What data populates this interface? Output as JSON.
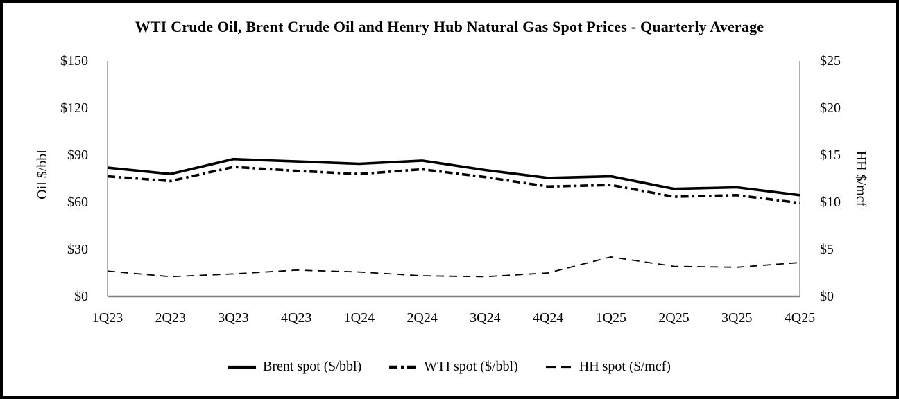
{
  "chart_data": {
    "type": "line",
    "title": "WTI Crude Oil, Brent Crude Oil and Henry Hub Natural Gas Spot Prices - Quarterly Average",
    "categories": [
      "1Q23",
      "2Q23",
      "3Q23",
      "4Q23",
      "1Q24",
      "2Q24",
      "3Q24",
      "4Q24",
      "1Q25",
      "2Q25",
      "3Q25",
      "4Q25"
    ],
    "series": [
      {
        "name": "Brent spot ($/bbl)",
        "axis": "left",
        "style": "solid",
        "values": [
          82,
          78,
          87.5,
          86,
          84.5,
          86.5,
          80.5,
          75.5,
          76.5,
          68.5,
          69.5,
          64.5
        ]
      },
      {
        "name": "WTI spot ($/bbl)",
        "axis": "left",
        "style": "dash-dot",
        "values": [
          76.5,
          73.5,
          82.5,
          80,
          78,
          81,
          76,
          70,
          71,
          63.5,
          64.5,
          59.5
        ]
      },
      {
        "name": "HH spot ($/mcf)",
        "axis": "right",
        "style": "dashed",
        "values": [
          2.7,
          2.1,
          2.4,
          2.8,
          2.6,
          2.2,
          2.1,
          2.5,
          4.2,
          3.2,
          3.1,
          3.6
        ]
      }
    ],
    "left_axis": {
      "label": "Oil $/bbl",
      "min": 0,
      "max": 150,
      "ticks": [
        "$150",
        "$120",
        "$90",
        "$60",
        "$30",
        "$0"
      ]
    },
    "right_axis": {
      "label": "HH $/mcf",
      "min": 0,
      "max": 25,
      "ticks": [
        "$25",
        "$20",
        "$15",
        "$10",
        "$5",
        "$0"
      ]
    },
    "legend_position": "bottom",
    "grid": "off",
    "colors": {
      "series": "#000000",
      "axis_line": "#8c8c8c",
      "baseline": "#7f7f7f",
      "background": "#ffffff",
      "frame_border": "#000000"
    }
  }
}
